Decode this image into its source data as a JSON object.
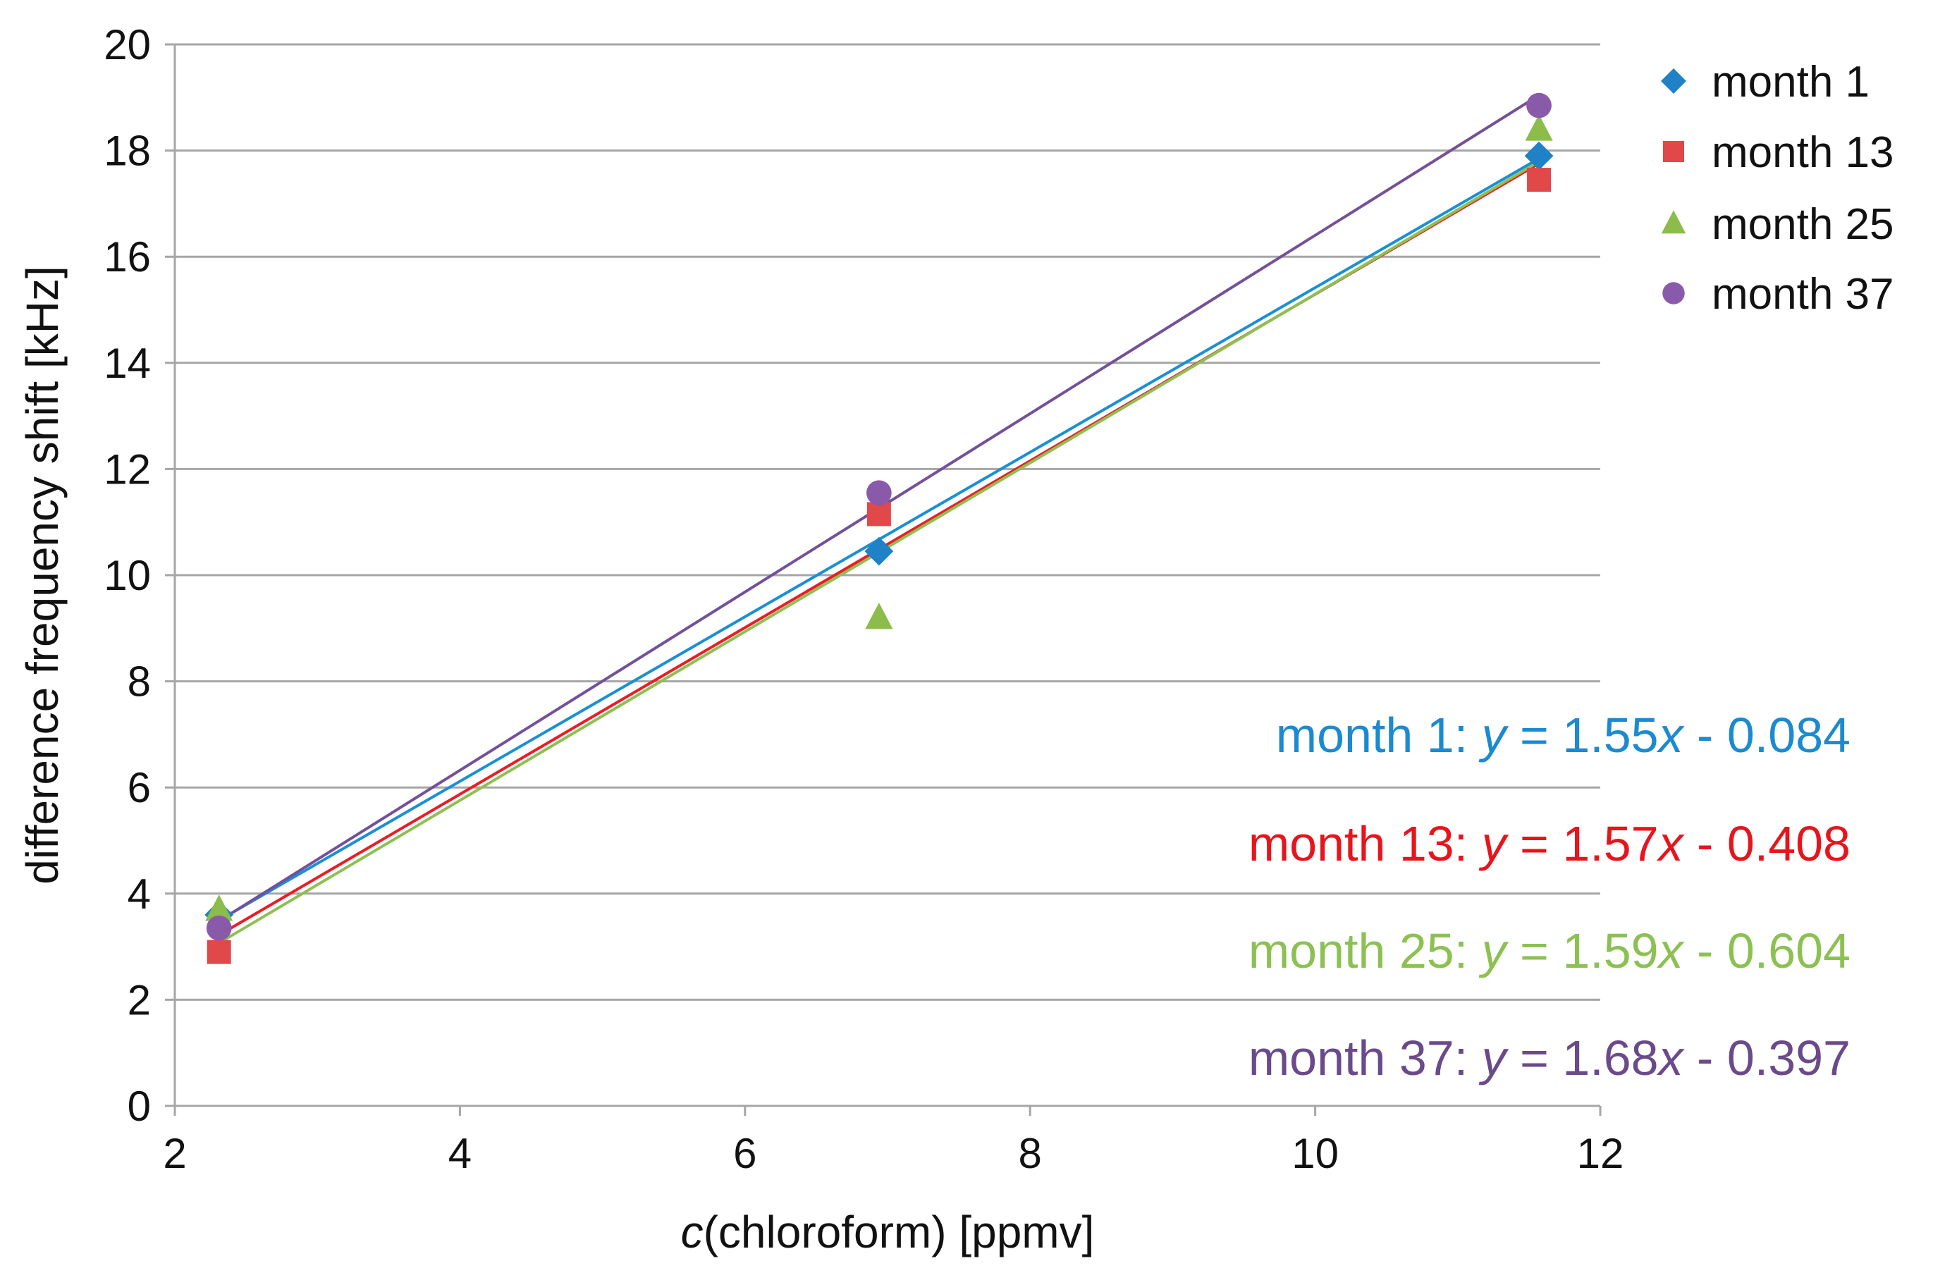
{
  "chart_data": {
    "type": "scatter",
    "xlabel": {
      "italic": "c",
      "rest": "(chloroform) [ppmv]"
    },
    "ylabel": "difference frequency shift [kHz]",
    "xlim": [
      2,
      12
    ],
    "ylim": [
      0,
      20
    ],
    "xticks": [
      "2",
      "4",
      "6",
      "8",
      "10",
      "12"
    ],
    "yticks": [
      "0",
      "2",
      "4",
      "6",
      "8",
      "10",
      "12",
      "14",
      "16",
      "18",
      "20"
    ],
    "grid": "horizontal",
    "legend_position": "top-right",
    "x": [
      2.31,
      6.94,
      11.57
    ],
    "series": [
      {
        "name": "month 1",
        "marker": "diamond",
        "color": "#1f82c6",
        "line_color": "#1a8fd6",
        "values": [
          3.6,
          10.45,
          17.9
        ],
        "fit": {
          "slope": 1.55,
          "intercept": -0.084,
          "label": "month 1: ",
          "y": "y",
          "eq1": " = 1.55",
          "x": "x",
          "eq2": " - 0.084"
        }
      },
      {
        "name": "month 13",
        "marker": "square",
        "color": "#e0484a",
        "line_color": "#ec1c24",
        "values": [
          2.9,
          11.15,
          17.45
        ],
        "fit": {
          "slope": 1.57,
          "intercept": -0.408,
          "label": "month 13: ",
          "y": "y",
          "eq1": " = 1.57",
          "x": "x",
          "eq2": " - 0.408"
        }
      },
      {
        "name": "month 25",
        "marker": "triangle",
        "color": "#8cbc4a",
        "line_color": "#8cc152",
        "values": [
          3.7,
          9.2,
          18.4
        ],
        "fit": {
          "slope": 1.59,
          "intercept": -0.604,
          "label": "month 25: ",
          "y": "y",
          "eq1": " = 1.59",
          "x": "x",
          "eq2": " - 0.604"
        }
      },
      {
        "name": "month 37",
        "marker": "circle",
        "color": "#8a5aaa",
        "line_color": "#73509a",
        "values": [
          3.35,
          11.55,
          18.85
        ],
        "fit": {
          "slope": 1.68,
          "intercept": -0.397,
          "label": "month 37: ",
          "y": "y",
          "eq1": " = 1.68",
          "x": "x",
          "eq2": " - 0.397"
        }
      }
    ],
    "equation_colors": [
      "#1b8ad0",
      "#e8141c",
      "#8cc152",
      "#6a4a8a"
    ]
  }
}
